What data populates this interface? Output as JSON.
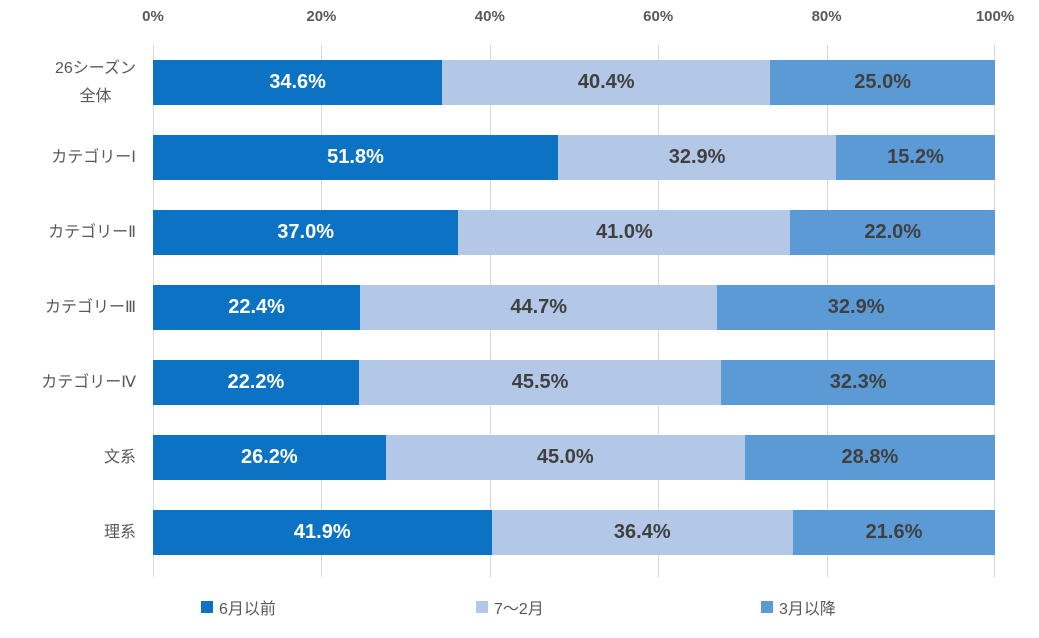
{
  "chart_data": {
    "type": "bar",
    "orientation": "horizontal",
    "stacked": true,
    "title": "",
    "categories": [
      "26シーズン\n全体",
      "カテゴリーⅠ",
      "カテゴリーⅡ",
      "カテゴリーⅢ",
      "カテゴリーⅣ",
      "文系",
      "理系"
    ],
    "series": [
      {
        "name": "6月以前",
        "color": "#0b72c4",
        "label_color": "#ffffff",
        "values": [
          34.6,
          51.8,
          37.0,
          22.4,
          22.2,
          26.2,
          41.9
        ]
      },
      {
        "name": "7～2月",
        "color": "#b3c7e6",
        "label_color": "#404040",
        "values": [
          40.4,
          32.9,
          41.0,
          44.7,
          45.5,
          45.0,
          36.4
        ]
      },
      {
        "name": "3月以降",
        "color": "#5b9ad5",
        "label_color": "#404040",
        "values": [
          25.0,
          15.2,
          22.0,
          32.9,
          32.3,
          28.8,
          21.6
        ]
      }
    ],
    "x_axis": {
      "position": "top",
      "range": [
        0,
        100
      ],
      "ticks": [
        "0%",
        "20%",
        "40%",
        "60%",
        "80%",
        "100%"
      ],
      "tick_color": "#595959"
    },
    "gridlines": {
      "visible": true,
      "color": "#d9d9d9"
    },
    "legend": {
      "position": "bottom"
    },
    "value_format": "one_decimal_percent",
    "colors": {
      "background": "#ffffff",
      "category_label": "#595959",
      "data_label_on_dark": "#ffffff",
      "data_label_on_light": "#404040"
    }
  }
}
